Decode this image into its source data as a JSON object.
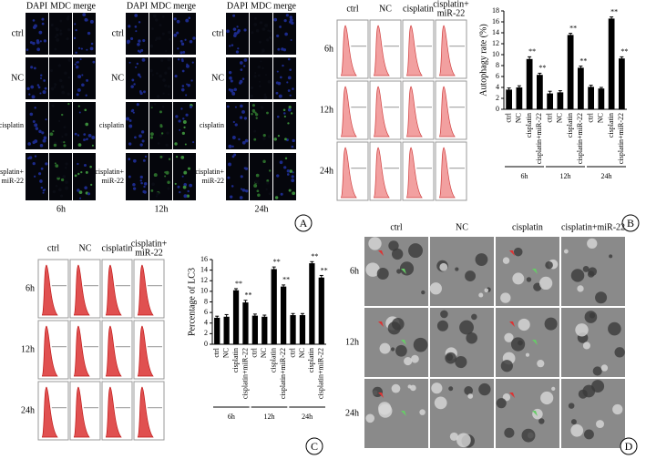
{
  "panel_A": {
    "letter": "A",
    "channels": [
      "DAPI",
      "MDC",
      "merge"
    ],
    "rows": [
      [
        "ctrl"
      ],
      [
        "NC"
      ],
      [
        "cisplatin"
      ],
      [
        "cisplatin+",
        "miR-22"
      ]
    ],
    "times": [
      "6h",
      "12h",
      "24h"
    ]
  },
  "panel_B": {
    "letter": "B",
    "columns": [
      [
        "ctrl"
      ],
      [
        "NC"
      ],
      [
        "cisplatin"
      ],
      [
        "cisplatin+",
        "miR-22"
      ]
    ],
    "rows": [
      "6h",
      "12h",
      "24h"
    ]
  },
  "panel_C": {
    "letter": "C",
    "columns": [
      [
        "ctrl"
      ],
      [
        "NC"
      ],
      [
        "cisplatin"
      ],
      [
        "cisplatin+",
        "miR-22"
      ]
    ],
    "rows": [
      "6h",
      "12h",
      "24h"
    ]
  },
  "panel_D": {
    "letter": "D",
    "columns": [
      "ctrl",
      "NC",
      "cisplatin",
      "cisplatin+miR-22"
    ],
    "rows": [
      "6h",
      "12h",
      "24h"
    ]
  },
  "chart_data": [
    {
      "type": "bar",
      "y_label": "Autophagy rate (%)",
      "color": "#000000",
      "categories": [
        "ctrl",
        "NC",
        "cisplatin",
        "cisplatin+miR-22",
        "ctrl",
        "NC",
        "cisplatin",
        "cisplatin+miR-22",
        "ctrl",
        "NC",
        "cisplatin",
        "cisplatin+miR-22"
      ],
      "groups": [
        "6h",
        "12h",
        "24h"
      ],
      "values": [
        3.6,
        4.0,
        9.2,
        6.3,
        2.9,
        3.1,
        13.6,
        7.6,
        4.1,
        3.8,
        16.6,
        9.3
      ],
      "errors": [
        0.3,
        0.3,
        0.4,
        0.3,
        0.4,
        0.3,
        0.3,
        0.3,
        0.3,
        0.2,
        0.3,
        0.3
      ],
      "significance": [
        null,
        null,
        "**",
        "**",
        null,
        null,
        "**",
        "**",
        null,
        null,
        "**",
        "**"
      ],
      "ylim": [
        0,
        18
      ],
      "yticks": [
        0,
        2,
        4,
        6,
        8,
        10,
        12,
        14,
        16,
        18
      ]
    },
    {
      "type": "bar",
      "y_label": "Percentage of LC3",
      "color": "#000000",
      "categories": [
        "ctrl",
        "NC",
        "cisplatin",
        "cisplatin+miR-22",
        "ctrl",
        "NC",
        "cisplatin",
        "cisplatin+miR-22",
        "ctrl",
        "NC",
        "cisplatin",
        "cisplatin+miR-22"
      ],
      "groups": [
        "6h",
        "12h",
        "24h"
      ],
      "values": [
        5.0,
        5.2,
        10.2,
        7.9,
        5.4,
        5.2,
        14.2,
        10.9,
        5.5,
        5.5,
        15.3,
        12.6
      ],
      "errors": [
        0.3,
        0.4,
        0.3,
        0.4,
        0.3,
        0.3,
        0.4,
        0.3,
        0.3,
        0.3,
        0.3,
        0.4
      ],
      "significance": [
        null,
        null,
        "**",
        "**",
        null,
        null,
        "**",
        "**",
        null,
        null,
        "**",
        "**"
      ],
      "ylim": [
        0,
        16
      ],
      "yticks": [
        0,
        2,
        4,
        6,
        8,
        10,
        12,
        14,
        16
      ]
    }
  ]
}
